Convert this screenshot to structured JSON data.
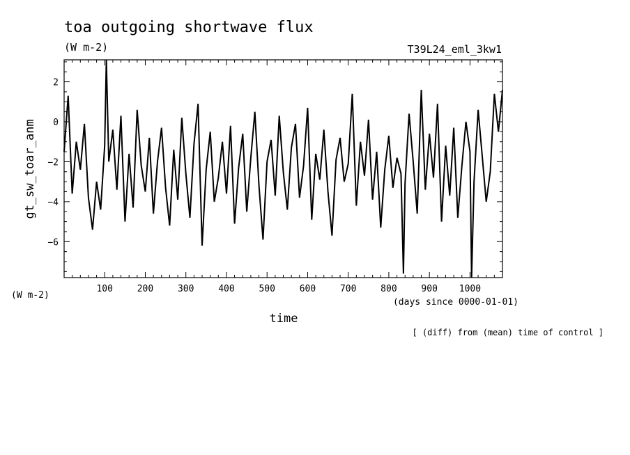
{
  "chart_data": {
    "type": "line",
    "title": "toa outgoing shortwave flux",
    "units": "(W m-2)",
    "experiment": "T39L24_eml_3kw1",
    "ylabel": "gt_sw_toar_anm",
    "yunits": "(W m-2)",
    "xlabel": "time",
    "xunits": "(days since 0000-01-01)",
    "note": "[ (diff) from (mean) time of control ]",
    "xlim": [
      0,
      1080
    ],
    "ylim": [
      -7.8,
      3.1
    ],
    "xticks": [
      100,
      200,
      300,
      400,
      500,
      600,
      700,
      800,
      900,
      1000
    ],
    "yticks": [
      2,
      0,
      -2,
      -4,
      -6
    ],
    "grid": false,
    "series": [
      {
        "line_color": "#000000",
        "x": [
          0,
          10,
          20,
          30,
          40,
          50,
          60,
          70,
          80,
          90,
          100,
          104,
          110,
          120,
          130,
          140,
          150,
          160,
          170,
          180,
          190,
          200,
          210,
          220,
          230,
          240,
          250,
          260,
          270,
          280,
          290,
          300,
          310,
          320,
          330,
          340,
          350,
          360,
          370,
          380,
          390,
          400,
          410,
          420,
          430,
          440,
          450,
          460,
          470,
          480,
          490,
          500,
          510,
          520,
          530,
          540,
          550,
          560,
          570,
          580,
          590,
          600,
          610,
          620,
          630,
          640,
          650,
          660,
          670,
          680,
          690,
          700,
          710,
          720,
          730,
          740,
          750,
          760,
          770,
          780,
          790,
          800,
          810,
          820,
          830,
          836,
          840,
          850,
          860,
          870,
          880,
          890,
          900,
          910,
          920,
          930,
          940,
          950,
          960,
          970,
          980,
          990,
          1000,
          1004,
          1010,
          1020,
          1030,
          1040,
          1050,
          1060,
          1070,
          1080
        ],
        "y": [
          -1.5,
          1.3,
          -3.6,
          -1.0,
          -2.4,
          -0.1,
          -3.8,
          -5.4,
          -3.0,
          -4.4,
          -1.2,
          3.1,
          -2.0,
          -0.4,
          -3.4,
          0.3,
          -5.0,
          -1.6,
          -4.3,
          0.6,
          -2.2,
          -3.5,
          -0.8,
          -4.6,
          -2.0,
          -0.3,
          -3.3,
          -5.2,
          -1.4,
          -3.9,
          0.2,
          -2.6,
          -4.8,
          -1.1,
          0.9,
          -6.2,
          -2.4,
          -0.5,
          -4.0,
          -2.8,
          -1.0,
          -3.6,
          -0.2,
          -5.1,
          -2.3,
          -0.6,
          -4.5,
          -1.8,
          0.5,
          -3.2,
          -5.9,
          -2.0,
          -0.9,
          -3.7,
          0.3,
          -2.5,
          -4.4,
          -1.3,
          -0.1,
          -3.8,
          -2.2,
          0.7,
          -4.9,
          -1.6,
          -2.9,
          -0.4,
          -3.5,
          -5.7,
          -1.9,
          -0.8,
          -3.0,
          -2.1,
          1.4,
          -4.2,
          -1.0,
          -2.7,
          0.1,
          -3.9,
          -1.5,
          -5.3,
          -2.4,
          -0.7,
          -3.3,
          -1.8,
          -2.6,
          -7.6,
          -3.1,
          0.4,
          -2.0,
          -4.6,
          1.6,
          -3.4,
          -0.6,
          -2.8,
          0.9,
          -5.0,
          -1.2,
          -3.7,
          -0.3,
          -4.8,
          -2.2,
          0.0,
          -1.5,
          -7.8,
          -3.0,
          0.6,
          -1.7,
          -4.0,
          -2.5,
          1.4,
          -0.5,
          1.6
        ]
      }
    ]
  }
}
